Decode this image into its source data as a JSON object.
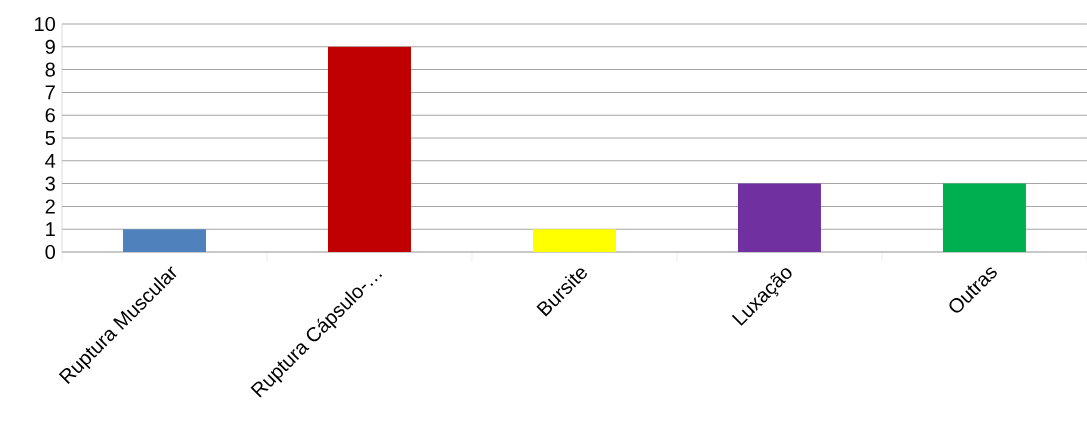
{
  "chart_data": {
    "type": "bar",
    "categories": [
      "Ruptura Muscular",
      "Ruptura Cápsulo-…",
      "Bursite",
      "Luxação",
      "Outras"
    ],
    "values": [
      1,
      9,
      1,
      3,
      3
    ],
    "colors": [
      "#4f81bd",
      "#c00000",
      "#ffff00",
      "#7030a0",
      "#00b050"
    ],
    "ylim": [
      0,
      10
    ],
    "yticks": [
      0,
      1,
      2,
      3,
      4,
      5,
      6,
      7,
      8,
      9,
      10
    ],
    "grid": "y"
  }
}
